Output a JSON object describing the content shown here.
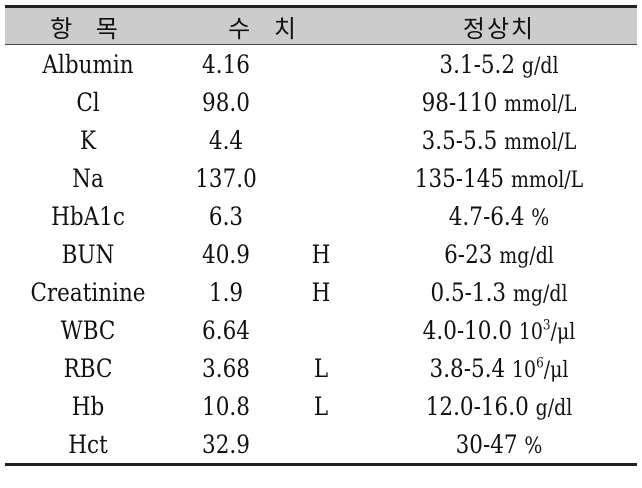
{
  "headers": {
    "item": "항 목",
    "value": "수 치",
    "normal": "정상치"
  },
  "rows": [
    {
      "item": "Albumin",
      "value": "4.16",
      "flag": "",
      "range": "3.1-5.2",
      "unit": "g/dl",
      "sup": "",
      "unit_after": ""
    },
    {
      "item": "Cl",
      "value": "98.0",
      "flag": "",
      "range": "98-110",
      "unit": "mmol/L",
      "sup": "",
      "unit_after": ""
    },
    {
      "item": "K",
      "value": "4.4",
      "flag": "",
      "range": "3.5-5.5",
      "unit": "mmol/L",
      "sup": "",
      "unit_after": ""
    },
    {
      "item": "Na",
      "value": "137.0",
      "flag": "",
      "range": "135-145",
      "unit": "mmol/L",
      "sup": "",
      "unit_after": ""
    },
    {
      "item": "HbA1c",
      "value": "6.3",
      "flag": "",
      "range": "4.7-6.4",
      "unit": "%",
      "sup": "",
      "unit_after": ""
    },
    {
      "item": "BUN",
      "value": "40.9",
      "flag": "H",
      "range": "6-23",
      "unit": "mg/dl",
      "sup": "",
      "unit_after": ""
    },
    {
      "item": "Creatinine",
      "value": "1.9",
      "flag": "H",
      "range": "0.5-1.3",
      "unit": "mg/dl",
      "sup": "",
      "unit_after": ""
    },
    {
      "item": "WBC",
      "value": "6.64",
      "flag": "",
      "range": "4.0-10.0",
      "unit": "10",
      "sup": "3",
      "unit_after": "/μl"
    },
    {
      "item": "RBC",
      "value": "3.68",
      "flag": "L",
      "range": "3.8-5.4",
      "unit": "10",
      "sup": "6",
      "unit_after": "/μl"
    },
    {
      "item": "Hb",
      "value": "10.8",
      "flag": "L",
      "range": "12.0-16.0",
      "unit": "g/dl",
      "sup": "",
      "unit_after": ""
    },
    {
      "item": "Hct",
      "value": "32.9",
      "flag": "",
      "range": "30-47",
      "unit": "%",
      "sup": "",
      "unit_after": ""
    }
  ]
}
